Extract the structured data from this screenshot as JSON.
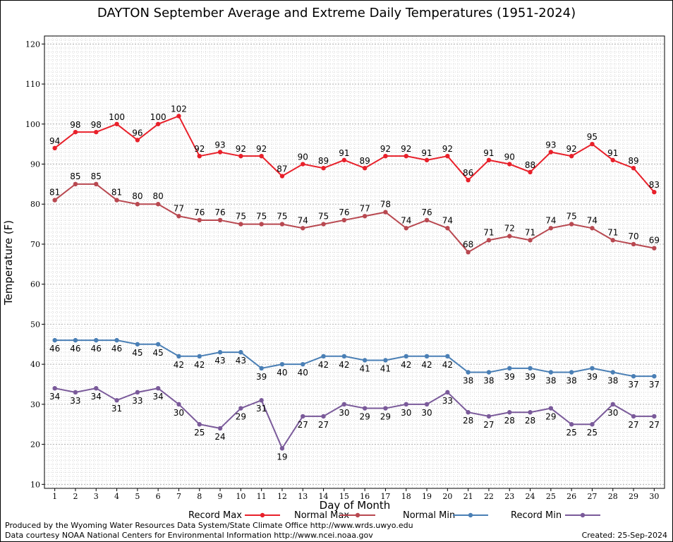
{
  "chart_data": {
    "type": "line",
    "title": "DAYTON September Average and Extreme Daily Temperatures (1951-2024)",
    "xlabel": "Day of Month",
    "ylabel": "Temperature (F)",
    "x": [
      1,
      2,
      3,
      4,
      5,
      6,
      7,
      8,
      9,
      10,
      11,
      12,
      13,
      14,
      15,
      16,
      17,
      18,
      19,
      20,
      21,
      22,
      23,
      24,
      25,
      26,
      27,
      28,
      29,
      30
    ],
    "ylim": [
      9,
      122
    ],
    "yticks": [
      10,
      20,
      30,
      40,
      50,
      60,
      70,
      80,
      90,
      100,
      110,
      120
    ],
    "grid": true,
    "legend_position": "bottom",
    "series": [
      {
        "name": "Record Max",
        "color": "#e8202a",
        "values": [
          94,
          98,
          98,
          100,
          96,
          100,
          102,
          92,
          93,
          92,
          92,
          87,
          90,
          89,
          91,
          89,
          92,
          92,
          91,
          92,
          86,
          91,
          90,
          88,
          93,
          92,
          95,
          91,
          89,
          83
        ]
      },
      {
        "name": "Normal Max",
        "color": "#b84850",
        "values": [
          81,
          85,
          85,
          81,
          80,
          80,
          77,
          76,
          76,
          75,
          75,
          75,
          74,
          75,
          76,
          77,
          78,
          74,
          76,
          74,
          68,
          71,
          72,
          71,
          74,
          75,
          74,
          71,
          70,
          69
        ]
      },
      {
        "name": "Normal Min",
        "color": "#4a7fb5",
        "values": [
          46,
          46,
          46,
          46,
          45,
          45,
          42,
          42,
          43,
          43,
          39,
          40,
          40,
          42,
          42,
          41,
          41,
          42,
          42,
          42,
          38,
          38,
          39,
          39,
          38,
          38,
          39,
          38,
          37,
          37
        ]
      },
      {
        "name": "Record Min",
        "color": "#7a5a9a",
        "values": [
          34,
          33,
          34,
          31,
          33,
          34,
          30,
          25,
          24,
          29,
          31,
          19,
          27,
          27,
          30,
          29,
          29,
          30,
          30,
          33,
          28,
          27,
          28,
          28,
          29,
          25,
          25,
          30,
          27,
          27
        ]
      }
    ]
  },
  "footer": {
    "produced_by": "Produced by the Wyoming Water Resources Data System/State Climate Office http://www.wrds.uwyo.edu",
    "data_source": "Data courtesy NOAA National Centers for Environmental Information http://www.ncei.noaa.gov",
    "created": "Created: 25-Sep-2024"
  }
}
